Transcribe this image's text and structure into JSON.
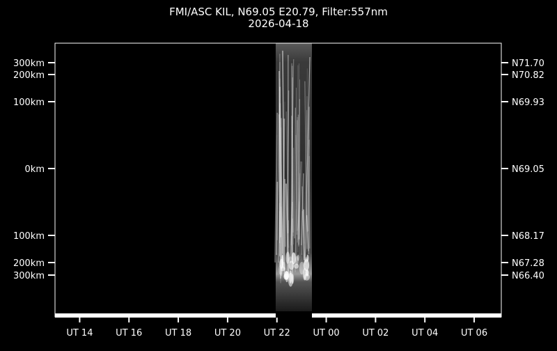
{
  "chart_data": {
    "type": "heatmap",
    "title": "FMI/ASC KIL, N69.05 E20.79, Filter:557nm",
    "subtitle": "2026-04-18",
    "xlabel": "",
    "ylabel": "",
    "x_range_hours": [
      13.0,
      31.1
    ],
    "x_ticks": [
      {
        "hour": 14,
        "label": "UT 14"
      },
      {
        "hour": 16,
        "label": "UT 16"
      },
      {
        "hour": 18,
        "label": "UT 18"
      },
      {
        "hour": 20,
        "label": "UT 20"
      },
      {
        "hour": 22,
        "label": "UT 22"
      },
      {
        "hour": 24,
        "label": "UT 00"
      },
      {
        "hour": 26,
        "label": "UT 02"
      },
      {
        "hour": 28,
        "label": "UT 04"
      },
      {
        "hour": 30,
        "label": "UT 06"
      }
    ],
    "y_ticks_left": [
      "300km",
      "200km",
      "100km",
      "0km",
      "100km",
      "200km",
      "300km"
    ],
    "y_ticks_right": [
      "N71.70",
      "N70.82",
      "N69.93",
      "N69.05",
      "N68.17",
      "N67.28",
      "N66.40"
    ],
    "y_tick_latitudes": [
      71.7,
      70.82,
      69.93,
      69.05,
      68.17,
      67.28,
      66.4
    ],
    "data_coverage_hours": [
      21.95,
      23.42
    ],
    "colormap": "grayscale",
    "grid": false,
    "colors": {
      "background": "#000000",
      "foreground": "#ffffff"
    }
  }
}
